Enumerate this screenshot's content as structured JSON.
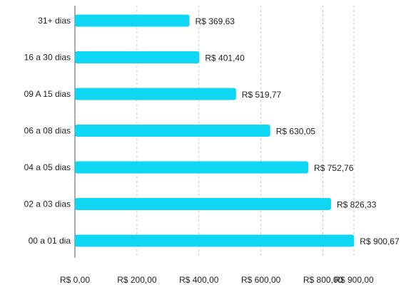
{
  "chart_data": {
    "type": "bar",
    "orientation": "horizontal",
    "categories": [
      "31+ dias",
      "16 a 30 dias",
      "09 A 15 dias",
      "06 a 08 dias",
      "04 a 05 dias",
      "02 a 03 dias",
      "00 a 01 dia"
    ],
    "values": [
      369.63,
      401.4,
      519.77,
      630.05,
      752.76,
      826.33,
      900.67
    ],
    "value_labels": [
      "R$ 369,63",
      "R$ 401,40",
      "R$ 519,77",
      "R$ 630,05",
      "R$ 752,76",
      "R$ 826,33",
      "R$ 900,67"
    ],
    "x_ticks": [
      {
        "value": 0,
        "label": "R$ 0,00"
      },
      {
        "value": 200,
        "label": "R$ 200,00"
      },
      {
        "value": 400,
        "label": "R$ 400,00"
      },
      {
        "value": 600,
        "label": "R$ 600,00"
      },
      {
        "value": 800,
        "label": "R$ 800,00"
      },
      {
        "value": 900,
        "label": "R$ 900,00"
      }
    ],
    "xlim": [
      0,
      900
    ],
    "grid": "vertical dashed",
    "colors": {
      "bar": "#0fd6f2",
      "grid": "#c8c8c8",
      "axis": "#555555",
      "text": "#222222"
    }
  }
}
